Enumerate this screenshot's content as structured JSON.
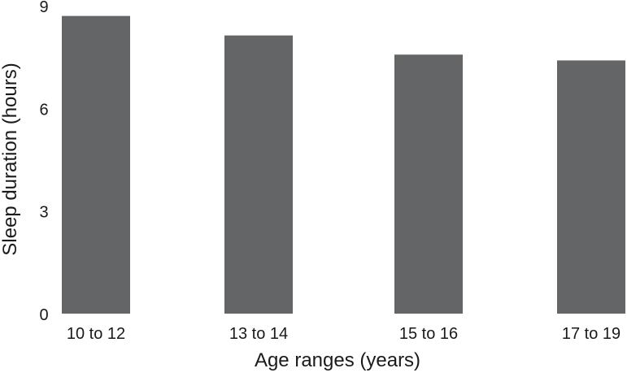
{
  "chart_data": {
    "type": "bar",
    "title": "",
    "xlabel": "Age ranges (years)",
    "ylabel": "Sleep duration (hours)",
    "categories": [
      "10 to 12",
      "13 to 14",
      "15 to 16",
      "17 to 19"
    ],
    "values": [
      8.7,
      8.13,
      7.57,
      7.4
    ],
    "ylim": [
      0,
      9
    ],
    "yticks": [
      "0",
      "3",
      "6",
      "9"
    ],
    "grid": false,
    "bar_color": "#646566"
  }
}
